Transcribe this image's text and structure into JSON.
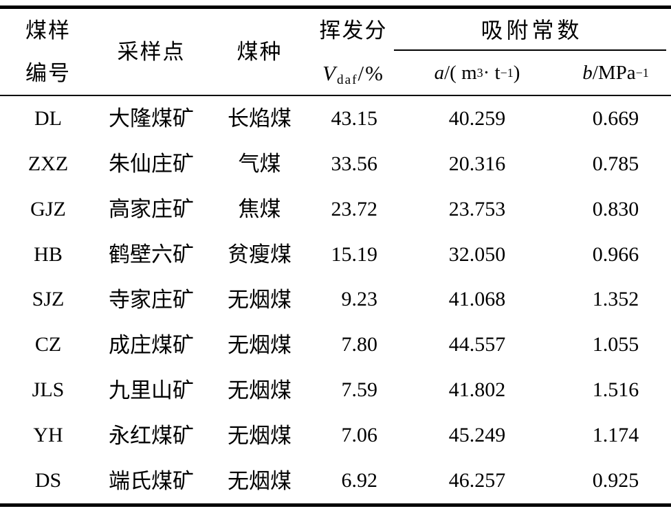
{
  "colors": {
    "background": "#ffffff",
    "text": "#000000",
    "rule": "#000000"
  },
  "header": {
    "sample_id_line1": "煤样",
    "sample_id_line2": "编号",
    "sampling_site": "采样点",
    "coal_type": "煤种",
    "volatile_line1": "挥发分",
    "volatile_var": "V",
    "volatile_sub": "daf",
    "volatile_unit": "/%",
    "adsorption_group": "吸附常数",
    "a_var": "a",
    "a_open": "/( m",
    "a_sup1": "3",
    "a_dot": " · t",
    "a_sup2": "−1",
    "a_close": " )",
    "b_var": "b",
    "b_unit": "/MPa",
    "b_sup": "−1"
  },
  "rows": [
    {
      "id": "DL",
      "site": "大隆煤矿",
      "type": "长焰煤",
      "vdaf": "43.15",
      "a": "40.259",
      "b": "0.669"
    },
    {
      "id": "ZXZ",
      "site": "朱仙庄矿",
      "type": "气煤",
      "vdaf": "33.56",
      "a": "20.316",
      "b": "0.785"
    },
    {
      "id": "GJZ",
      "site": "高家庄矿",
      "type": "焦煤",
      "vdaf": "23.72",
      "a": "23.753",
      "b": "0.830"
    },
    {
      "id": "HB",
      "site": "鹤壁六矿",
      "type": "贫瘦煤",
      "vdaf": "15.19",
      "a": "32.050",
      "b": "0.966"
    },
    {
      "id": "SJZ",
      "site": "寺家庄矿",
      "type": "无烟煤",
      "vdaf": "9.23",
      "a": "41.068",
      "b": "1.352"
    },
    {
      "id": "CZ",
      "site": "成庄煤矿",
      "type": "无烟煤",
      "vdaf": "7.80",
      "a": "44.557",
      "b": "1.055"
    },
    {
      "id": "JLS",
      "site": "九里山矿",
      "type": "无烟煤",
      "vdaf": "7.59",
      "a": "41.802",
      "b": "1.516"
    },
    {
      "id": "YH",
      "site": "永红煤矿",
      "type": "无烟煤",
      "vdaf": "7.06",
      "a": "45.249",
      "b": "1.174"
    },
    {
      "id": "DS",
      "site": "端氏煤矿",
      "type": "无烟煤",
      "vdaf": "6.92",
      "a": "46.257",
      "b": "0.925"
    }
  ]
}
